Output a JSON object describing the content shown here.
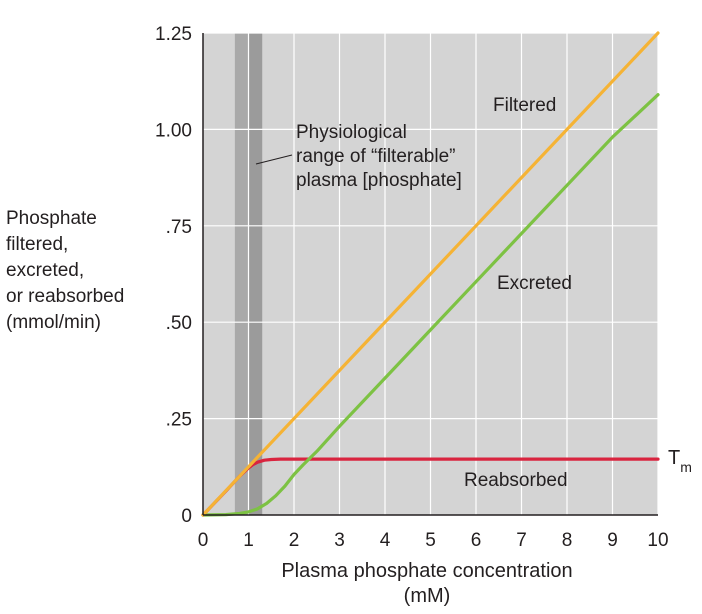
{
  "chart_data": {
    "type": "line",
    "xlabel_line1": "Plasma phosphate concentration",
    "xlabel_line2": "(mM)",
    "ylabel_lines": [
      "Phosphate",
      "filtered,",
      "excreted,",
      "or reabsorbed",
      "(mmol/min)"
    ],
    "xlim": [
      0,
      10
    ],
    "ylim": [
      0,
      1.25
    ],
    "x_ticks": [
      0,
      1,
      2,
      3,
      4,
      5,
      6,
      7,
      8,
      9,
      10
    ],
    "x_tick_labels": [
      "0",
      "1",
      "2",
      "3",
      "4",
      "5",
      "6",
      "7",
      "8",
      "9",
      "10"
    ],
    "y_ticks": [
      0,
      0.25,
      0.5,
      0.75,
      1.0,
      1.25
    ],
    "y_tick_labels": [
      "0",
      ".25",
      ".50",
      ".75",
      "1.00",
      "1.25"
    ],
    "grid": true,
    "physiological_range": {
      "x_outer": [
        0.7,
        1.3
      ],
      "x_inner": [
        1.0,
        1.3
      ],
      "label_lines": [
        "Physiological",
        "range of “filterable”",
        "plasma [phosphate]"
      ]
    },
    "series": [
      {
        "name": "Filtered",
        "color": "#f5b335",
        "x": [
          0,
          10
        ],
        "y": [
          0,
          1.25
        ]
      },
      {
        "name": "Excreted",
        "color": "#7dc243",
        "x": [
          0,
          0.5,
          0.8,
          1.0,
          1.2,
          1.4,
          1.6,
          1.8,
          2.0,
          2.2,
          2.5,
          3,
          4,
          5,
          6,
          7,
          8,
          9,
          10
        ],
        "y": [
          0,
          0.001,
          0.004,
          0.008,
          0.016,
          0.03,
          0.05,
          0.075,
          0.105,
          0.13,
          0.165,
          0.23,
          0.355,
          0.48,
          0.605,
          0.73,
          0.855,
          0.98,
          1.09
        ]
      },
      {
        "name": "Reabsorbed",
        "color": "#d9243f",
        "x": [
          0,
          0.5,
          0.8,
          1.0,
          1.1,
          1.2,
          1.35,
          1.5,
          1.7,
          2.0,
          10
        ],
        "y": [
          0,
          0.062,
          0.1,
          0.122,
          0.131,
          0.137,
          0.142,
          0.144,
          0.145,
          0.145,
          0.145
        ]
      }
    ],
    "tm_label": {
      "main": "T",
      "sub": "m"
    }
  }
}
